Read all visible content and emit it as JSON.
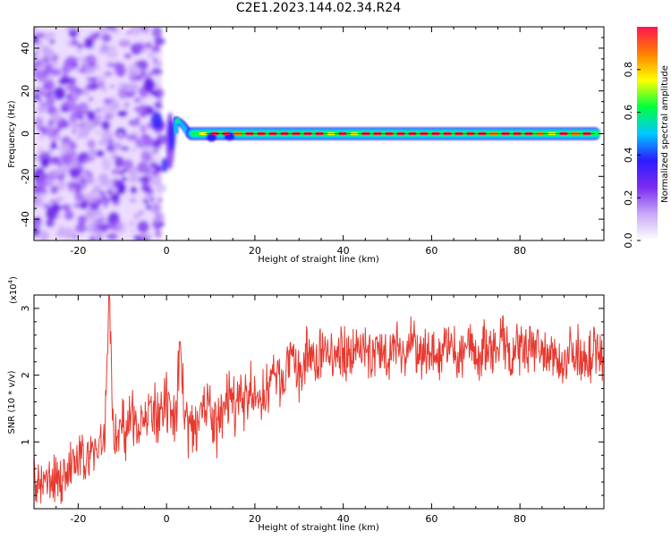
{
  "figure_title": "C2E1.2023.144.02.34.R24",
  "colors": {
    "snr_line": "#e8392f",
    "colormap": [
      "#ffffff",
      "#c8a8f8",
      "#7b2cf0",
      "#2b1cff",
      "#00c8ff",
      "#00ff40",
      "#ffff00",
      "#ff7f00",
      "#ff1550"
    ]
  },
  "chart_data": [
    {
      "type": "heatmap",
      "xlabel": "Height of straight line (km)",
      "ylabel": "Frequency (Hz)",
      "xlim": [
        -30,
        99
      ],
      "ylim": [
        -50,
        50
      ],
      "xticks": [
        -20,
        0,
        20,
        40,
        60,
        80
      ],
      "yticks": [
        -40,
        -20,
        0,
        20,
        40
      ],
      "colorbar": {
        "label": "Normalized spectral amplitude",
        "range": [
          0.0,
          1.0
        ],
        "ticks": [
          "0.0",
          "0.2",
          "0.4",
          "0.6",
          "0.8"
        ]
      },
      "features": {
        "noise_region_km": [
          -30,
          -1
        ],
        "signal_onset_km": 0,
        "signal_frequency_hz": 0,
        "initial_peak": {
          "x": 2.5,
          "y": 6
        }
      }
    },
    {
      "type": "line",
      "xlabel": "Height of straight line (km)",
      "ylabel": "SNR (10 * v/v)",
      "scale_label": "(x10",
      "scale_exponent": "4",
      "xlim": [
        -30,
        99
      ],
      "ylim": [
        0,
        3.2
      ],
      "xticks": [
        -20,
        0,
        20,
        40,
        60,
        80
      ],
      "yticks": [
        1,
        2,
        3
      ],
      "series": [
        {
          "x": [
            -30,
            -28,
            -26,
            -24,
            -22,
            -20,
            -18,
            -16,
            -14,
            -13,
            -12,
            -10,
            -8,
            -6,
            -4,
            -2,
            0,
            2,
            3,
            4,
            6,
            8,
            10,
            12,
            14,
            16,
            18,
            20,
            22,
            24,
            26,
            28,
            30,
            32,
            34,
            36,
            38,
            40,
            42,
            44,
            46,
            48,
            50,
            52,
            54,
            56,
            58,
            60,
            62,
            64,
            66,
            68,
            70,
            72,
            74,
            76,
            78,
            80,
            82,
            84,
            86,
            88,
            90,
            92,
            94,
            96,
            98,
            99
          ],
          "y": [
            0.4,
            0.3,
            0.5,
            0.4,
            0.6,
            0.7,
            0.8,
            0.9,
            1.0,
            3.2,
            1.1,
            1.2,
            1.3,
            1.35,
            1.4,
            1.3,
            1.5,
            1.2,
            2.5,
            1.4,
            1.2,
            1.6,
            1.4,
            1.2,
            1.7,
            1.5,
            1.7,
            1.6,
            1.7,
            2.0,
            1.9,
            2.2,
            2.0,
            2.3,
            2.2,
            2.4,
            2.2,
            2.4,
            2.3,
            2.5,
            2.2,
            2.4,
            2.3,
            2.5,
            2.3,
            2.5,
            2.2,
            2.4,
            2.3,
            2.5,
            2.2,
            2.6,
            2.2,
            2.4,
            2.3,
            2.5,
            2.2,
            2.4,
            2.3,
            2.5,
            2.2,
            2.3,
            2.2,
            2.4,
            2.3,
            2.3,
            2.4,
            2.2
          ]
        }
      ]
    }
  ]
}
